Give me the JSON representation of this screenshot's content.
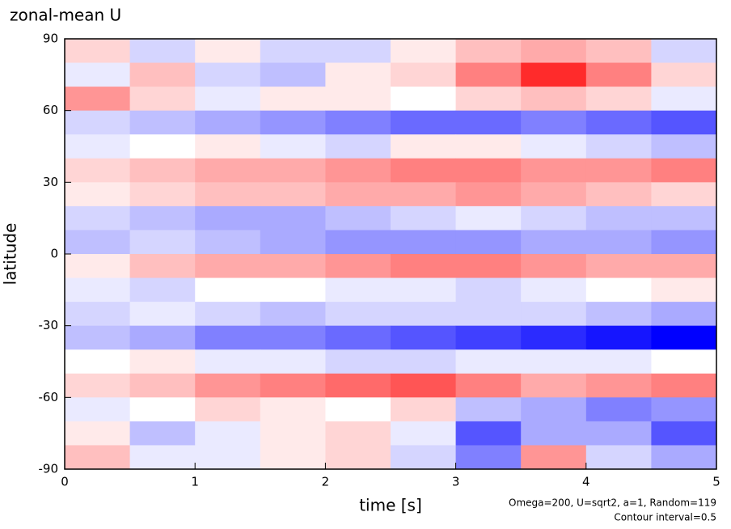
{
  "chart_data": {
    "type": "heatmap",
    "title": "zonal-mean U",
    "x_label": "time [s]",
    "y_label": "latitude",
    "notes": [
      "Omega=200, U=sqrt2, a=1, Random=119",
      "Contour interval=0.5"
    ],
    "xlim": [
      0,
      5
    ],
    "ylim": [
      -90,
      90
    ],
    "xticks": [
      0,
      1,
      2,
      3,
      4,
      5
    ],
    "yticks": [
      90,
      60,
      30,
      0,
      -30,
      -60,
      -90
    ],
    "positive_color": "#ff0000",
    "negative_color": "#0000ff",
    "clim": [
      -6,
      6
    ],
    "x": [
      0.25,
      0.75,
      1.25,
      1.75,
      2.25,
      2.75,
      3.25,
      3.75,
      4.25,
      4.75
    ],
    "y": [
      85,
      75,
      65,
      55,
      45,
      35,
      25,
      15,
      5,
      -5,
      -15,
      -25,
      -35,
      -45,
      -55,
      -65,
      -75,
      -85
    ],
    "z": [
      [
        1,
        -1,
        0.5,
        -1,
        -1,
        0.5,
        1.5,
        2,
        1.5,
        -1
      ],
      [
        -0.5,
        1.5,
        -1,
        -1.5,
        0.5,
        1,
        3,
        5,
        3,
        1
      ],
      [
        2.5,
        1,
        -0.5,
        0.5,
        0.5,
        0,
        1,
        1.5,
        1,
        -0.5
      ],
      [
        -1,
        -1.5,
        -2,
        -2.5,
        -3,
        -3.5,
        -3.5,
        -3,
        -3.5,
        -4
      ],
      [
        -0.5,
        0,
        0.5,
        -0.5,
        -1,
        0.5,
        0.5,
        -0.5,
        -1,
        -1.5
      ],
      [
        1,
        1.5,
        2,
        2,
        2.5,
        3,
        3,
        2.5,
        2.5,
        3
      ],
      [
        0.5,
        1,
        1.5,
        1.5,
        2,
        2,
        2.5,
        2,
        1.5,
        1
      ],
      [
        -1,
        -1.5,
        -2,
        -2,
        -1.5,
        -1,
        -0.5,
        -1,
        -1.5,
        -1.5
      ],
      [
        -1.5,
        -1,
        -1.5,
        -2,
        -2.5,
        -2.5,
        -2.5,
        -2,
        -2,
        -2.5
      ],
      [
        0.5,
        1.5,
        2,
        2,
        2.5,
        3,
        3,
        2.5,
        2,
        2
      ],
      [
        -0.5,
        -1,
        0,
        0,
        -0.5,
        -0.5,
        -1,
        -0.5,
        0,
        0.5
      ],
      [
        -1,
        -0.5,
        -1,
        -1.5,
        -1,
        -1,
        -1,
        -1,
        -1.5,
        -2
      ],
      [
        -1.5,
        -2,
        -3,
        -3,
        -3.5,
        -4,
        -4.5,
        -5,
        -5.5,
        -6
      ],
      [
        0,
        0.5,
        -0.5,
        -0.5,
        -1,
        -1,
        -0.5,
        -0.5,
        -0.5,
        0
      ],
      [
        1,
        1.5,
        2.5,
        3,
        3.5,
        4,
        3,
        2,
        2.5,
        3
      ],
      [
        -0.5,
        0,
        1,
        0.5,
        0,
        1,
        -1.5,
        -2,
        -3,
        -2.5
      ],
      [
        0.5,
        -1.5,
        -0.5,
        0.5,
        1,
        -0.5,
        -4,
        -2,
        -2,
        -4
      ],
      [
        1.5,
        -0.5,
        -0.5,
        0.5,
        1,
        -1,
        -3,
        2.5,
        -1,
        -2
      ]
    ]
  }
}
